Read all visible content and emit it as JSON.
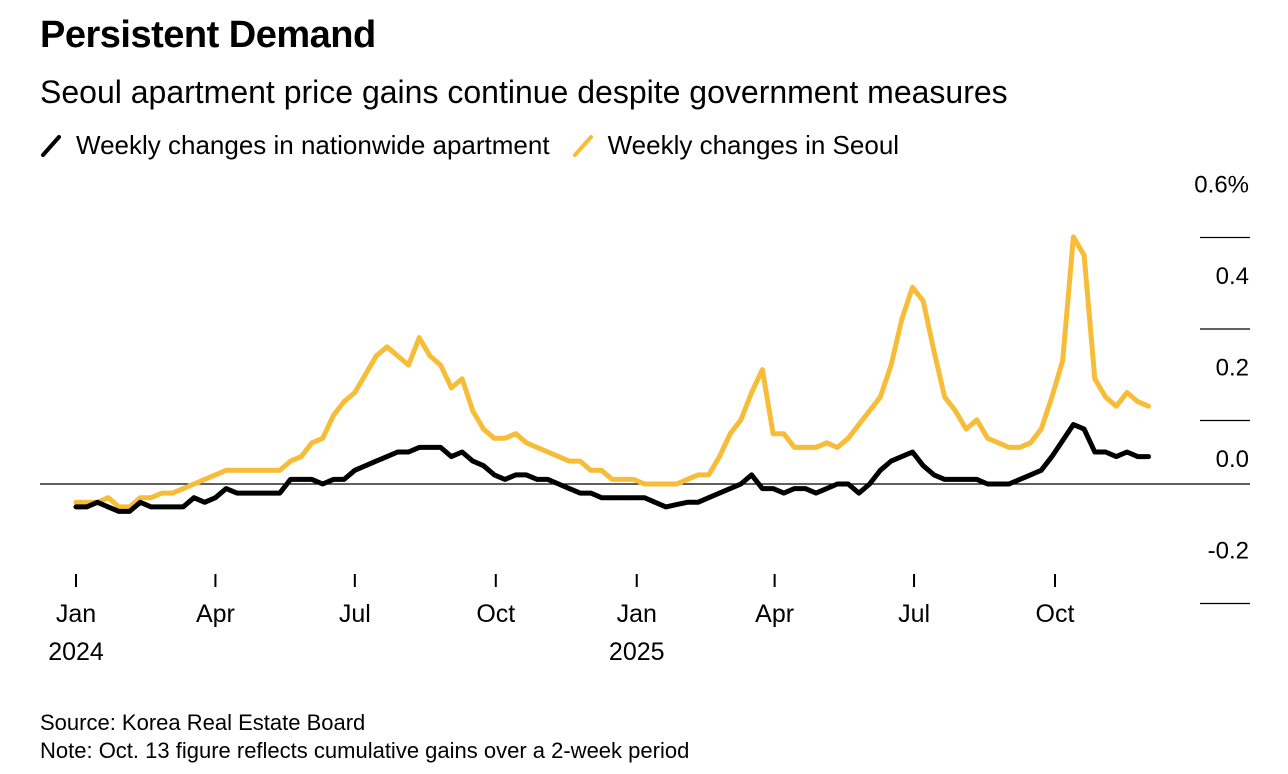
{
  "header": {
    "title": "Persistent Demand",
    "subtitle": "Seoul apartment price gains continue despite government measures"
  },
  "legend": [
    {
      "label": "Weekly changes in nationwide apartment",
      "color": "#000000"
    },
    {
      "label": "Weekly changes in Seoul",
      "color": "#F7BD38"
    }
  ],
  "footer": {
    "source": "Source: Korea Real Estate Board",
    "note": "Note: Oct. 13 figure reflects cumulative gains over a 2-week period"
  },
  "chart_data": {
    "type": "line",
    "x_axis_type": "date",
    "ylim": [
      -0.2,
      0.6
    ],
    "y_ticks": [
      {
        "value": 0.6,
        "label": "0.6%"
      },
      {
        "value": 0.4,
        "label": "0.4"
      },
      {
        "value": 0.2,
        "label": "0.2"
      },
      {
        "value": 0.0,
        "label": "0.0"
      },
      {
        "value": -0.2,
        "label": "-0.2"
      }
    ],
    "x_ticks": [
      {
        "date": "2024-01-01",
        "label": "Jan",
        "year": "2024"
      },
      {
        "date": "2024-04-01",
        "label": "Apr",
        "year": ""
      },
      {
        "date": "2024-07-01",
        "label": "Jul",
        "year": ""
      },
      {
        "date": "2024-10-01",
        "label": "Oct",
        "year": ""
      },
      {
        "date": "2025-01-01",
        "label": "Jan",
        "year": "2025"
      },
      {
        "date": "2025-04-01",
        "label": "Apr",
        "year": ""
      },
      {
        "date": "2025-07-01",
        "label": "Jul",
        "year": ""
      },
      {
        "date": "2025-10-01",
        "label": "Oct",
        "year": ""
      }
    ],
    "series": [
      {
        "name": "Weekly changes in nationwide apartment",
        "color": "#000000",
        "points": [
          [
            "2024-01-01",
            -0.05
          ],
          [
            "2024-01-08",
            -0.05
          ],
          [
            "2024-01-15",
            -0.04
          ],
          [
            "2024-01-22",
            -0.05
          ],
          [
            "2024-01-29",
            -0.06
          ],
          [
            "2024-02-05",
            -0.06
          ],
          [
            "2024-02-12",
            -0.04
          ],
          [
            "2024-02-19",
            -0.05
          ],
          [
            "2024-02-26",
            -0.05
          ],
          [
            "2024-03-04",
            -0.05
          ],
          [
            "2024-03-11",
            -0.05
          ],
          [
            "2024-03-18",
            -0.03
          ],
          [
            "2024-03-25",
            -0.04
          ],
          [
            "2024-04-01",
            -0.03
          ],
          [
            "2024-04-08",
            -0.01
          ],
          [
            "2024-04-15",
            -0.02
          ],
          [
            "2024-04-22",
            -0.02
          ],
          [
            "2024-04-29",
            -0.02
          ],
          [
            "2024-05-06",
            -0.02
          ],
          [
            "2024-05-13",
            -0.02
          ],
          [
            "2024-05-20",
            0.01
          ],
          [
            "2024-05-27",
            0.01
          ],
          [
            "2024-06-03",
            0.01
          ],
          [
            "2024-06-10",
            0.0
          ],
          [
            "2024-06-17",
            0.01
          ],
          [
            "2024-06-24",
            0.01
          ],
          [
            "2024-07-01",
            0.03
          ],
          [
            "2024-07-08",
            0.04
          ],
          [
            "2024-07-15",
            0.05
          ],
          [
            "2024-07-22",
            0.06
          ],
          [
            "2024-07-29",
            0.07
          ],
          [
            "2024-08-05",
            0.07
          ],
          [
            "2024-08-12",
            0.08
          ],
          [
            "2024-08-19",
            0.08
          ],
          [
            "2024-08-26",
            0.08
          ],
          [
            "2024-09-02",
            0.06
          ],
          [
            "2024-09-09",
            0.07
          ],
          [
            "2024-09-16",
            0.05
          ],
          [
            "2024-09-23",
            0.04
          ],
          [
            "2024-09-30",
            0.02
          ],
          [
            "2024-10-07",
            0.01
          ],
          [
            "2024-10-14",
            0.02
          ],
          [
            "2024-10-21",
            0.02
          ],
          [
            "2024-10-28",
            0.01
          ],
          [
            "2024-11-04",
            0.01
          ],
          [
            "2024-11-11",
            0.0
          ],
          [
            "2024-11-18",
            -0.01
          ],
          [
            "2024-11-25",
            -0.02
          ],
          [
            "2024-12-02",
            -0.02
          ],
          [
            "2024-12-09",
            -0.03
          ],
          [
            "2024-12-16",
            -0.03
          ],
          [
            "2024-12-23",
            -0.03
          ],
          [
            "2024-12-30",
            -0.03
          ],
          [
            "2025-01-06",
            -0.03
          ],
          [
            "2025-01-13",
            -0.04
          ],
          [
            "2025-01-20",
            -0.05
          ],
          [
            "2025-01-27",
            -0.045
          ],
          [
            "2025-02-03",
            -0.04
          ],
          [
            "2025-02-10",
            -0.04
          ],
          [
            "2025-02-17",
            -0.03
          ],
          [
            "2025-02-24",
            -0.02
          ],
          [
            "2025-03-03",
            -0.01
          ],
          [
            "2025-03-10",
            0.0
          ],
          [
            "2025-03-17",
            0.02
          ],
          [
            "2025-03-24",
            -0.01
          ],
          [
            "2025-03-31",
            -0.01
          ],
          [
            "2025-04-07",
            -0.02
          ],
          [
            "2025-04-14",
            -0.01
          ],
          [
            "2025-04-21",
            -0.01
          ],
          [
            "2025-04-28",
            -0.02
          ],
          [
            "2025-05-05",
            -0.01
          ],
          [
            "2025-05-12",
            0.0
          ],
          [
            "2025-05-19",
            0.0
          ],
          [
            "2025-05-26",
            -0.02
          ],
          [
            "2025-06-02",
            0.0
          ],
          [
            "2025-06-09",
            0.03
          ],
          [
            "2025-06-16",
            0.05
          ],
          [
            "2025-06-23",
            0.06
          ],
          [
            "2025-06-30",
            0.07
          ],
          [
            "2025-07-07",
            0.04
          ],
          [
            "2025-07-14",
            0.02
          ],
          [
            "2025-07-21",
            0.01
          ],
          [
            "2025-07-28",
            0.01
          ],
          [
            "2025-08-04",
            0.01
          ],
          [
            "2025-08-11",
            0.01
          ],
          [
            "2025-08-18",
            0.0
          ],
          [
            "2025-08-25",
            0.0
          ],
          [
            "2025-09-01",
            0.0
          ],
          [
            "2025-09-08",
            0.01
          ],
          [
            "2025-09-15",
            0.02
          ],
          [
            "2025-09-22",
            0.03
          ],
          [
            "2025-09-29",
            0.06
          ],
          [
            "2025-10-13",
            0.13
          ],
          [
            "2025-10-20",
            0.12
          ],
          [
            "2025-10-27",
            0.07
          ],
          [
            "2025-11-03",
            0.07
          ],
          [
            "2025-11-10",
            0.06
          ],
          [
            "2025-11-17",
            0.07
          ],
          [
            "2025-11-24",
            0.06
          ],
          [
            "2025-12-01",
            0.06
          ]
        ]
      },
      {
        "name": "Weekly changes in Seoul",
        "color": "#F7BD38",
        "points": [
          [
            "2024-01-01",
            -0.04
          ],
          [
            "2024-01-08",
            -0.04
          ],
          [
            "2024-01-15",
            -0.04
          ],
          [
            "2024-01-22",
            -0.03
          ],
          [
            "2024-01-29",
            -0.05
          ],
          [
            "2024-02-05",
            -0.05
          ],
          [
            "2024-02-12",
            -0.03
          ],
          [
            "2024-02-19",
            -0.03
          ],
          [
            "2024-02-26",
            -0.02
          ],
          [
            "2024-03-04",
            -0.02
          ],
          [
            "2024-03-11",
            -0.01
          ],
          [
            "2024-03-18",
            0.0
          ],
          [
            "2024-03-25",
            0.01
          ],
          [
            "2024-04-01",
            0.02
          ],
          [
            "2024-04-08",
            0.03
          ],
          [
            "2024-04-15",
            0.03
          ],
          [
            "2024-04-22",
            0.03
          ],
          [
            "2024-04-29",
            0.03
          ],
          [
            "2024-05-06",
            0.03
          ],
          [
            "2024-05-13",
            0.03
          ],
          [
            "2024-05-20",
            0.05
          ],
          [
            "2024-05-27",
            0.06
          ],
          [
            "2024-06-03",
            0.09
          ],
          [
            "2024-06-10",
            0.1
          ],
          [
            "2024-06-17",
            0.15
          ],
          [
            "2024-06-24",
            0.18
          ],
          [
            "2024-07-01",
            0.2
          ],
          [
            "2024-07-08",
            0.24
          ],
          [
            "2024-07-15",
            0.28
          ],
          [
            "2024-07-22",
            0.3
          ],
          [
            "2024-07-29",
            0.28
          ],
          [
            "2024-08-05",
            0.26
          ],
          [
            "2024-08-12",
            0.32
          ],
          [
            "2024-08-19",
            0.28
          ],
          [
            "2024-08-26",
            0.26
          ],
          [
            "2024-09-02",
            0.21
          ],
          [
            "2024-09-09",
            0.23
          ],
          [
            "2024-09-16",
            0.16
          ],
          [
            "2024-09-23",
            0.12
          ],
          [
            "2024-09-30",
            0.1
          ],
          [
            "2024-10-07",
            0.1
          ],
          [
            "2024-10-14",
            0.11
          ],
          [
            "2024-10-21",
            0.09
          ],
          [
            "2024-10-28",
            0.08
          ],
          [
            "2024-11-04",
            0.07
          ],
          [
            "2024-11-11",
            0.06
          ],
          [
            "2024-11-18",
            0.05
          ],
          [
            "2024-11-25",
            0.05
          ],
          [
            "2024-12-02",
            0.03
          ],
          [
            "2024-12-09",
            0.03
          ],
          [
            "2024-12-16",
            0.01
          ],
          [
            "2024-12-23",
            0.01
          ],
          [
            "2024-12-30",
            0.01
          ],
          [
            "2025-01-06",
            0.0
          ],
          [
            "2025-01-13",
            0.0
          ],
          [
            "2025-01-20",
            0.0
          ],
          [
            "2025-01-27",
            0.0
          ],
          [
            "2025-02-03",
            0.01
          ],
          [
            "2025-02-10",
            0.02
          ],
          [
            "2025-02-17",
            0.02
          ],
          [
            "2025-02-24",
            0.06
          ],
          [
            "2025-03-03",
            0.11
          ],
          [
            "2025-03-10",
            0.14
          ],
          [
            "2025-03-17",
            0.2
          ],
          [
            "2025-03-24",
            0.25
          ],
          [
            "2025-03-31",
            0.11
          ],
          [
            "2025-04-07",
            0.11
          ],
          [
            "2025-04-14",
            0.08
          ],
          [
            "2025-04-21",
            0.08
          ],
          [
            "2025-04-28",
            0.08
          ],
          [
            "2025-05-05",
            0.09
          ],
          [
            "2025-05-12",
            0.08
          ],
          [
            "2025-05-19",
            0.1
          ],
          [
            "2025-05-26",
            0.13
          ],
          [
            "2025-06-02",
            0.16
          ],
          [
            "2025-06-09",
            0.19
          ],
          [
            "2025-06-16",
            0.26
          ],
          [
            "2025-06-23",
            0.36
          ],
          [
            "2025-06-30",
            0.43
          ],
          [
            "2025-07-07",
            0.4
          ],
          [
            "2025-07-14",
            0.29
          ],
          [
            "2025-07-21",
            0.19
          ],
          [
            "2025-07-28",
            0.16
          ],
          [
            "2025-08-04",
            0.12
          ],
          [
            "2025-08-11",
            0.14
          ],
          [
            "2025-08-18",
            0.1
          ],
          [
            "2025-08-25",
            0.09
          ],
          [
            "2025-09-01",
            0.08
          ],
          [
            "2025-09-08",
            0.08
          ],
          [
            "2025-09-15",
            0.09
          ],
          [
            "2025-09-22",
            0.12
          ],
          [
            "2025-09-29",
            0.19
          ],
          [
            "2025-10-06",
            0.27
          ],
          [
            "2025-10-13",
            0.54
          ],
          [
            "2025-10-20",
            0.5
          ],
          [
            "2025-10-27",
            0.23
          ],
          [
            "2025-11-03",
            0.19
          ],
          [
            "2025-11-10",
            0.17
          ],
          [
            "2025-11-17",
            0.2
          ],
          [
            "2025-11-24",
            0.18
          ],
          [
            "2025-12-01",
            0.17
          ]
        ]
      }
    ]
  }
}
